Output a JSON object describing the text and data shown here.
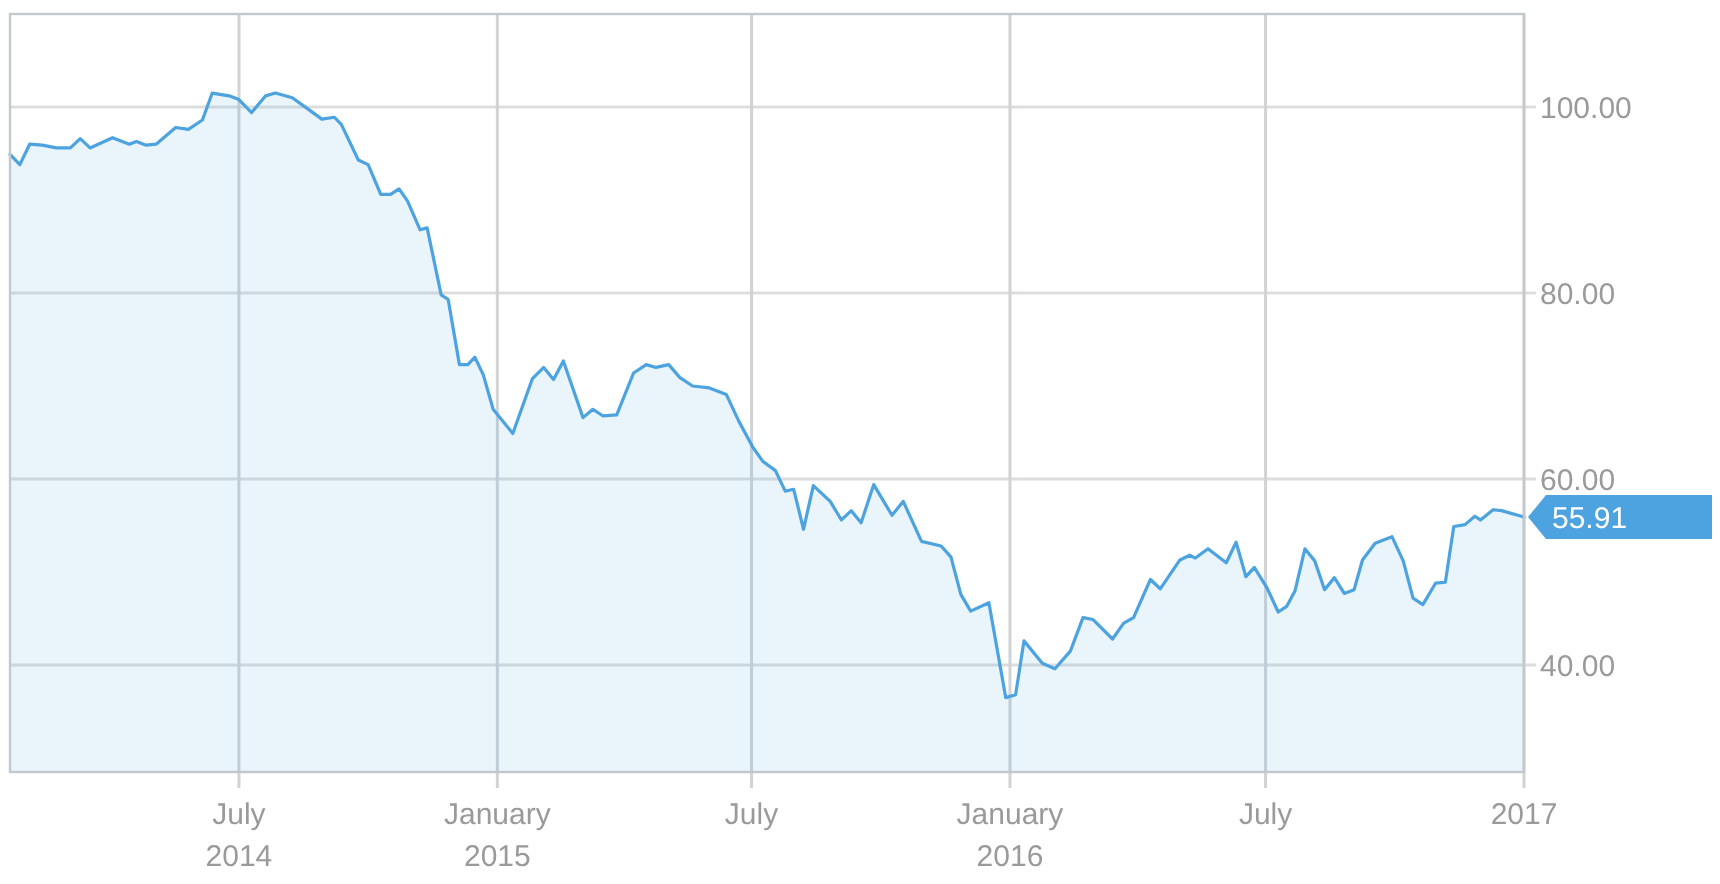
{
  "chart_data": {
    "type": "area",
    "x": [
      "2014-01-19",
      "2014-01-26",
      "2014-02-02",
      "2014-02-11",
      "2014-02-21",
      "2014-03-03",
      "2014-03-10",
      "2014-03-17",
      "2014-04-02",
      "2014-04-14",
      "2014-04-19",
      "2014-04-26",
      "2014-05-03",
      "2014-05-17",
      "2014-05-26",
      "2014-06-05",
      "2014-06-12",
      "2014-06-24",
      "2014-07-01",
      "2014-07-10",
      "2014-07-20",
      "2014-07-27",
      "2014-08-08",
      "2014-08-19",
      "2014-08-29",
      "2014-09-07",
      "2014-09-12",
      "2014-09-24",
      "2014-10-01",
      "2014-10-10",
      "2014-10-17",
      "2014-10-23",
      "2014-10-29",
      "2014-11-07",
      "2014-11-12",
      "2014-11-22",
      "2014-11-27",
      "2014-12-05",
      "2014-12-11",
      "2014-12-16",
      "2014-12-22",
      "2014-12-29",
      "2015-01-12",
      "2015-01-26",
      "2015-02-03",
      "2015-02-10",
      "2015-02-17",
      "2015-03-03",
      "2015-03-10",
      "2015-03-17",
      "2015-03-27",
      "2015-04-08",
      "2015-04-17",
      "2015-04-24",
      "2015-05-03",
      "2015-05-11",
      "2015-05-20",
      "2015-06-01",
      "2015-06-13",
      "2015-06-22",
      "2015-07-02",
      "2015-07-09",
      "2015-07-18",
      "2015-07-25",
      "2015-07-31",
      "2015-08-07",
      "2015-08-14",
      "2015-08-26",
      "2015-09-03",
      "2015-09-10",
      "2015-09-17",
      "2015-09-26",
      "2015-10-09",
      "2015-10-17",
      "2015-10-30",
      "2015-11-13",
      "2015-11-20",
      "2015-11-27",
      "2015-12-04",
      "2015-12-17",
      "2015-12-29",
      "2016-01-05",
      "2016-01-11",
      "2016-01-24",
      "2016-02-02",
      "2016-02-13",
      "2016-02-22",
      "2016-02-29",
      "2016-03-14",
      "2016-03-22",
      "2016-03-29",
      "2016-04-10",
      "2016-04-17",
      "2016-05-01",
      "2016-05-08",
      "2016-05-12",
      "2016-05-21",
      "2016-06-03",
      "2016-06-10",
      "2016-06-17",
      "2016-06-23",
      "2016-07-02",
      "2016-07-10",
      "2016-07-16",
      "2016-07-22",
      "2016-07-29",
      "2016-08-05",
      "2016-08-12",
      "2016-08-19",
      "2016-08-26",
      "2016-09-02",
      "2016-09-08",
      "2016-09-17",
      "2016-09-29",
      "2016-10-07",
      "2016-10-14",
      "2016-10-21",
      "2016-10-30",
      "2016-11-06",
      "2016-11-12",
      "2016-11-20",
      "2016-11-27",
      "2016-12-01",
      "2016-12-10",
      "2016-12-16",
      "2017-01-01"
    ],
    "series": [
      {
        "color": "#4da3e0",
        "values": [
          94.9,
          93.8,
          96.0,
          95.9,
          95.6,
          95.6,
          96.6,
          95.6,
          96.7,
          96.0,
          96.3,
          95.9,
          96.0,
          97.8,
          97.6,
          98.6,
          101.5,
          101.2,
          100.8,
          99.4,
          101.2,
          101.5,
          101.0,
          99.8,
          98.7,
          98.9,
          98.1,
          94.3,
          93.8,
          90.6,
          90.6,
          91.2,
          89.9,
          86.8,
          87.0,
          79.8,
          79.3,
          72.3,
          72.3,
          73.1,
          71.2,
          67.5,
          64.9,
          70.8,
          72.0,
          70.7,
          72.7,
          66.6,
          67.5,
          66.8,
          66.9,
          71.4,
          72.3,
          72.0,
          72.3,
          70.9,
          70.0,
          69.8,
          69.1,
          66.2,
          63.4,
          61.9,
          60.9,
          58.7,
          58.9,
          54.6,
          59.3,
          57.6,
          55.6,
          56.6,
          55.3,
          59.4,
          56.1,
          57.6,
          53.3,
          52.8,
          51.6,
          47.6,
          45.8,
          46.7,
          36.5,
          36.8,
          42.6,
          40.2,
          39.6,
          41.5,
          45.1,
          44.9,
          42.8,
          44.5,
          45.1,
          49.2,
          48.2,
          51.3,
          51.8,
          51.5,
          52.5,
          51.0,
          53.2,
          49.5,
          50.5,
          48.3,
          45.7,
          46.3,
          48.0,
          52.5,
          51.2,
          48.1,
          49.4,
          47.7,
          48.1,
          51.3,
          53.1,
          53.8,
          51.2,
          47.2,
          46.5,
          48.8,
          48.9,
          54.9,
          55.1,
          56.0,
          55.6,
          56.7,
          56.6,
          55.91
        ]
      }
    ],
    "xlim": [
      "2014-01-19",
      "2017-01-01"
    ],
    "xticks": [
      {
        "value": "2014-07-01",
        "label": "July\n2014"
      },
      {
        "value": "2015-01-01",
        "label": "January\n2015"
      },
      {
        "value": "2015-07-01",
        "label": "July"
      },
      {
        "value": "2016-01-01",
        "label": "January\n2016"
      },
      {
        "value": "2016-07-01",
        "label": "July"
      },
      {
        "value": "2017-01-01",
        "label": "2017"
      }
    ],
    "ylim": [
      28.5,
      110
    ],
    "yticks": [
      {
        "value": 40,
        "label": "40.00"
      },
      {
        "value": 60,
        "label": "60.00"
      },
      {
        "value": 80,
        "label": "80.00"
      },
      {
        "value": 100,
        "label": "100.00"
      }
    ],
    "grid": true,
    "annotations": [
      {
        "text": "55.91",
        "x": "2017-01-01",
        "y": 55.91
      }
    ]
  }
}
